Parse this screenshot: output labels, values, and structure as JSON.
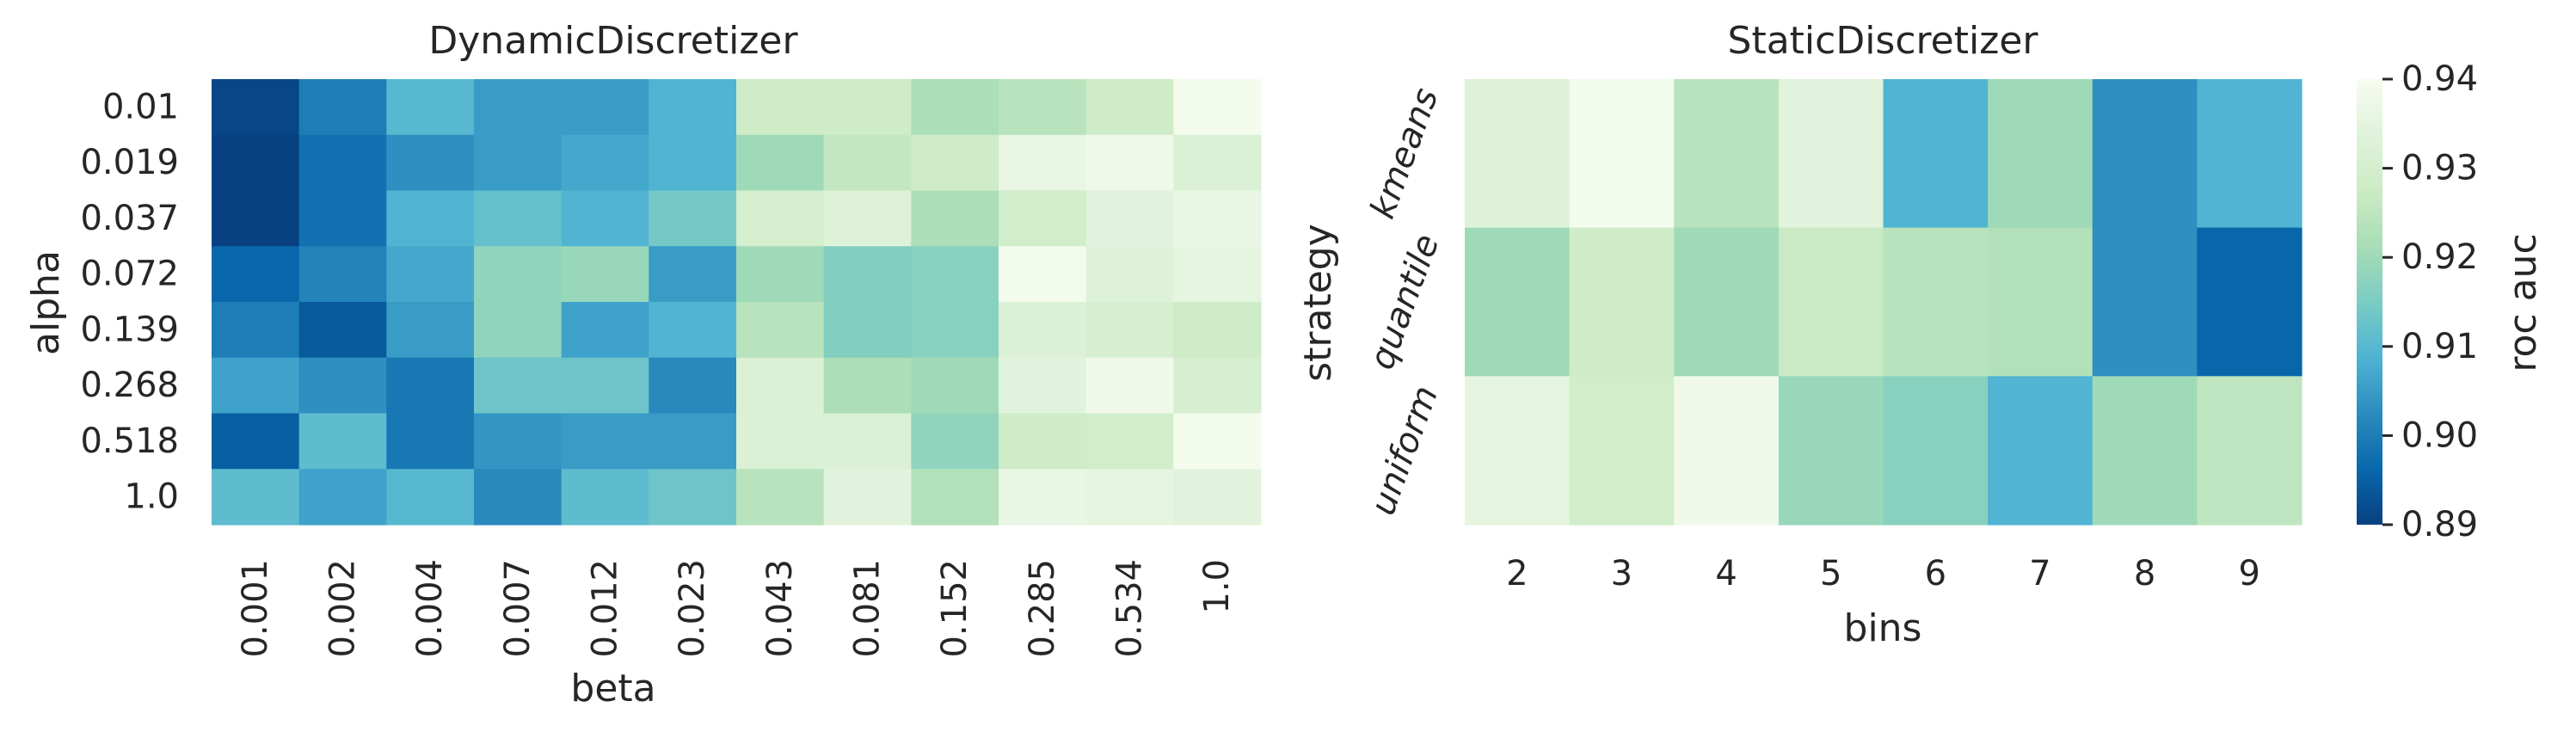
{
  "chart_data": [
    {
      "type": "heatmap",
      "title": "DynamicDiscretizer",
      "xlabel": "beta",
      "ylabel": "alpha",
      "x": [
        "0.001",
        "0.002",
        "0.004",
        "0.007",
        "0.012",
        "0.023",
        "0.043",
        "0.081",
        "0.152",
        "0.285",
        "0.534",
        "1.0"
      ],
      "y": [
        "0.01",
        "0.019",
        "0.037",
        "0.072",
        "0.139",
        "0.268",
        "0.518",
        "1.0"
      ],
      "values": [
        [
          0.891,
          0.9,
          0.91,
          0.905,
          0.905,
          0.909,
          0.928,
          0.928,
          0.922,
          0.924,
          0.928,
          0.939
        ],
        [
          0.89,
          0.898,
          0.903,
          0.905,
          0.907,
          0.909,
          0.92,
          0.926,
          0.928,
          0.936,
          0.938,
          0.932
        ],
        [
          0.89,
          0.898,
          0.909,
          0.912,
          0.909,
          0.914,
          0.93,
          0.933,
          0.922,
          0.929,
          0.934,
          0.936
        ],
        [
          0.896,
          0.901,
          0.907,
          0.918,
          0.919,
          0.905,
          0.92,
          0.916,
          0.917,
          0.939,
          0.933,
          0.935
        ],
        [
          0.9,
          0.894,
          0.905,
          0.918,
          0.906,
          0.909,
          0.924,
          0.916,
          0.917,
          0.932,
          0.931,
          0.928
        ],
        [
          0.906,
          0.903,
          0.899,
          0.913,
          0.913,
          0.902,
          0.932,
          0.922,
          0.92,
          0.934,
          0.938,
          0.931
        ],
        [
          0.895,
          0.911,
          0.899,
          0.904,
          0.905,
          0.905,
          0.932,
          0.932,
          0.918,
          0.928,
          0.929,
          0.939
        ],
        [
          0.911,
          0.906,
          0.91,
          0.902,
          0.911,
          0.913,
          0.924,
          0.934,
          0.923,
          0.936,
          0.935,
          0.934
        ]
      ],
      "vmin": 0.89,
      "vmax": 0.94,
      "y_tick_rotation": 0,
      "x_tick_rotation": 90
    },
    {
      "type": "heatmap",
      "title": "StaticDiscretizer",
      "xlabel": "bins",
      "ylabel": "strategy",
      "x": [
        "2",
        "3",
        "4",
        "5",
        "6",
        "7",
        "8",
        "9"
      ],
      "y": [
        "kmeans",
        "quantile",
        "uniform"
      ],
      "values": [
        [
          0.933,
          0.939,
          0.924,
          0.934,
          0.909,
          0.92,
          0.903,
          0.909
        ],
        [
          0.92,
          0.928,
          0.92,
          0.927,
          0.924,
          0.923,
          0.903,
          0.896
        ],
        [
          0.935,
          0.929,
          0.938,
          0.919,
          0.917,
          0.909,
          0.92,
          0.925
        ]
      ],
      "vmin": 0.89,
      "vmax": 0.94,
      "y_tick_rotation": 70,
      "x_tick_rotation": 0
    }
  ],
  "colorbar": {
    "label": "roc auc",
    "ticks": [
      "0.89",
      "0.90",
      "0.91",
      "0.92",
      "0.93",
      "0.94"
    ],
    "tick_values": [
      0.89,
      0.9,
      0.91,
      0.92,
      0.93,
      0.94
    ],
    "min": 0.89,
    "max": 0.94
  },
  "colormap": {
    "name": "GnBu_r",
    "stops": [
      "#084081",
      "#0868ac",
      "#2b8cbe",
      "#4eb3d3",
      "#7bccc4",
      "#a8ddb5",
      "#ccebc5",
      "#e0f3db",
      "#f7fcf0"
    ]
  }
}
